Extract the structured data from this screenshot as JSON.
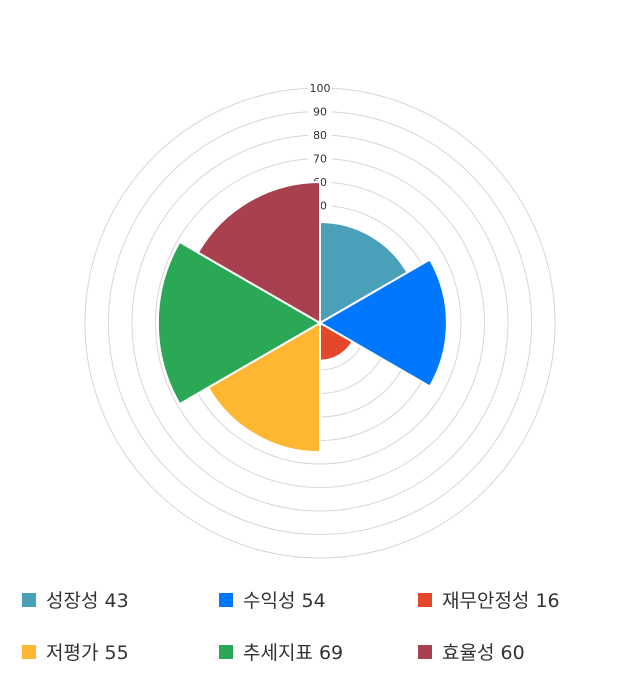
{
  "chart_data": {
    "type": "polar-area",
    "categories": [
      "성장성",
      "수익성",
      "재무안정성",
      "저평가",
      "추세지표",
      "효율성"
    ],
    "values": [
      43,
      54,
      16,
      55,
      69,
      60
    ],
    "colors": [
      "#4aa0b9",
      "#0077ff",
      "#e5472a",
      "#ffb732",
      "#2aa855",
      "#a8404f"
    ],
    "rlim": [
      0,
      100
    ],
    "ticks": [
      10,
      20,
      30,
      40,
      50,
      60,
      70,
      80,
      90,
      100
    ],
    "tick_labels": [
      "",
      "",
      "",
      "",
      "50",
      "60",
      "70",
      "80",
      "90",
      "100"
    ],
    "legend_position": "bottom",
    "legend": [
      "성장성 43",
      "수익성 54",
      "재무안정성 16",
      "저평가 55",
      "추세지표 69",
      "효율성 60"
    ]
  }
}
